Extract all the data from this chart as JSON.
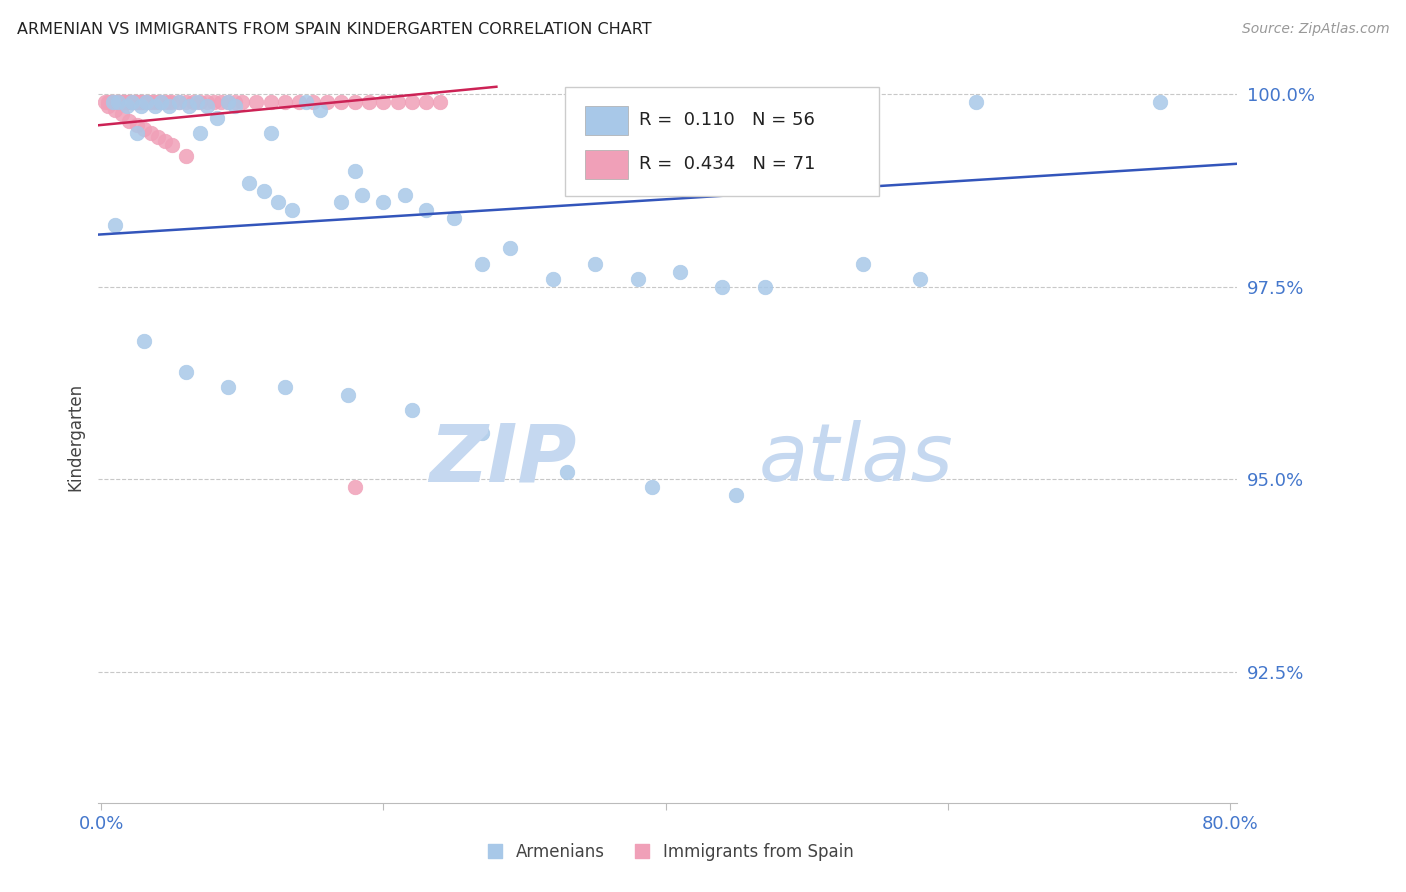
{
  "title": "ARMENIAN VS IMMIGRANTS FROM SPAIN KINDERGARTEN CORRELATION CHART",
  "source_text": "Source: ZipAtlas.com",
  "ylabel": "Kindergarten",
  "ytick_values": [
    1.0,
    0.975,
    0.95,
    0.925
  ],
  "ymin": 0.908,
  "ymax": 1.003,
  "xmin": -0.002,
  "xmax": 0.805,
  "legend_blue_R": "0.110",
  "legend_blue_N": "56",
  "legend_pink_R": "0.434",
  "legend_pink_N": "71",
  "blue_color": "#a8c8e8",
  "pink_color": "#f0a0b8",
  "blue_line_color": "#3355bb",
  "pink_line_color": "#cc2255",
  "watermark_color": "#dde8f5",
  "title_color": "#222222",
  "axis_label_color": "#4477cc",
  "grid_color": "#c8c8c8",
  "blue_scatter_x": [
    0.008,
    0.012,
    0.018,
    0.022,
    0.028,
    0.032,
    0.038,
    0.042,
    0.048,
    0.055,
    0.062,
    0.068,
    0.075,
    0.082,
    0.09,
    0.095,
    0.105,
    0.115,
    0.125,
    0.135,
    0.145,
    0.155,
    0.17,
    0.185,
    0.2,
    0.215,
    0.23,
    0.25,
    0.27,
    0.29,
    0.32,
    0.35,
    0.38,
    0.41,
    0.44,
    0.47,
    0.5,
    0.54,
    0.58,
    0.62,
    0.03,
    0.06,
    0.09,
    0.13,
    0.175,
    0.22,
    0.27,
    0.33,
    0.39,
    0.45,
    0.025,
    0.07,
    0.12,
    0.18,
    0.75,
    0.01
  ],
  "blue_scatter_y": [
    0.999,
    0.999,
    0.9985,
    0.999,
    0.9985,
    0.999,
    0.9985,
    0.999,
    0.9985,
    0.999,
    0.9985,
    0.999,
    0.9985,
    0.997,
    0.999,
    0.9985,
    0.9885,
    0.9875,
    0.986,
    0.985,
    0.999,
    0.998,
    0.986,
    0.987,
    0.986,
    0.987,
    0.985,
    0.984,
    0.978,
    0.98,
    0.976,
    0.978,
    0.976,
    0.977,
    0.975,
    0.975,
    0.999,
    0.978,
    0.976,
    0.999,
    0.968,
    0.964,
    0.962,
    0.962,
    0.961,
    0.959,
    0.956,
    0.951,
    0.949,
    0.948,
    0.995,
    0.995,
    0.995,
    0.99,
    0.999,
    0.983
  ],
  "pink_scatter_x": [
    0.003,
    0.005,
    0.006,
    0.008,
    0.009,
    0.01,
    0.011,
    0.012,
    0.013,
    0.014,
    0.015,
    0.016,
    0.017,
    0.018,
    0.019,
    0.02,
    0.021,
    0.022,
    0.023,
    0.024,
    0.025,
    0.026,
    0.027,
    0.028,
    0.029,
    0.03,
    0.032,
    0.034,
    0.036,
    0.038,
    0.04,
    0.042,
    0.045,
    0.048,
    0.05,
    0.055,
    0.06,
    0.065,
    0.07,
    0.075,
    0.08,
    0.085,
    0.09,
    0.095,
    0.1,
    0.11,
    0.12,
    0.13,
    0.14,
    0.15,
    0.16,
    0.17,
    0.18,
    0.19,
    0.2,
    0.21,
    0.22,
    0.23,
    0.24,
    0.005,
    0.01,
    0.015,
    0.02,
    0.025,
    0.03,
    0.035,
    0.04,
    0.045,
    0.05,
    0.06,
    0.18
  ],
  "pink_scatter_y": [
    0.999,
    0.999,
    0.999,
    0.999,
    0.999,
    0.999,
    0.999,
    0.999,
    0.999,
    0.999,
    0.999,
    0.999,
    0.999,
    0.999,
    0.999,
    0.999,
    0.999,
    0.999,
    0.999,
    0.999,
    0.999,
    0.999,
    0.999,
    0.999,
    0.999,
    0.999,
    0.999,
    0.999,
    0.999,
    0.999,
    0.999,
    0.999,
    0.999,
    0.999,
    0.999,
    0.999,
    0.999,
    0.999,
    0.999,
    0.999,
    0.999,
    0.999,
    0.999,
    0.999,
    0.999,
    0.999,
    0.999,
    0.999,
    0.999,
    0.999,
    0.999,
    0.999,
    0.999,
    0.999,
    0.999,
    0.999,
    0.999,
    0.999,
    0.999,
    0.9985,
    0.998,
    0.9975,
    0.9965,
    0.996,
    0.9955,
    0.995,
    0.9945,
    0.994,
    0.9935,
    0.992,
    0.949
  ],
  "blue_line_x": [
    -0.002,
    0.805
  ],
  "blue_line_y": [
    0.9818,
    0.991
  ],
  "pink_line_x": [
    -0.002,
    0.28
  ],
  "pink_line_y": [
    0.996,
    1.001
  ]
}
